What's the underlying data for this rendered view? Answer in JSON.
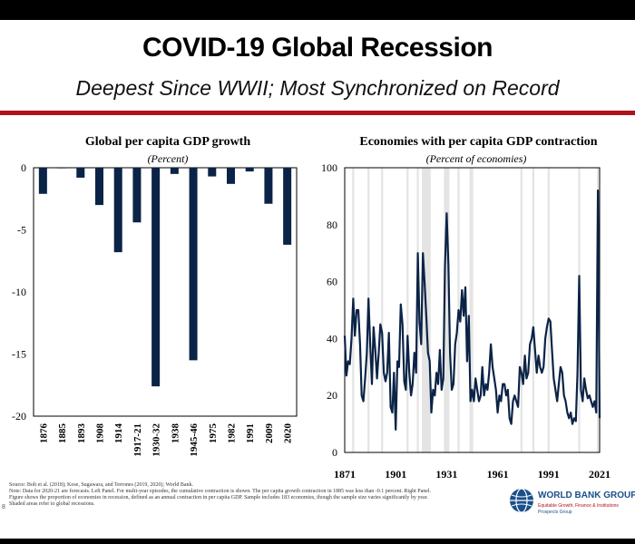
{
  "slide": {
    "title": "COVID-19 Global Recession",
    "subtitle": "Deepest Since WWII; Most Synchronized on Record",
    "source_lines": [
      "Source: Bolt et al. (2018); Kose, Sugawara, and Terrones (2019, 2020); World Bank.",
      "Note: Data for 2020-21 are forecasts. Left Panel. For multi-year episodes, the cumulative contraction is shown. The per capita growth contraction in 1885 was less than -0.1 percent. Right Panel.",
      "Figure shows the proportion of economies in recession, defined as an annual contraction in per capita GDP. Sample includes 183 economies, though the sample size varies significantly by year.",
      "Shaded areas refer to global recessions."
    ],
    "page_number": "8",
    "logo": {
      "name": "WORLD BANK GROUP",
      "tagline": "Equitable Growth, Finance & Institutions",
      "tagline2": "Prospects Group"
    }
  },
  "chart_data": [
    {
      "type": "bar",
      "title": "Global per capita GDP growth",
      "subtitle": "(Percent)",
      "categories": [
        "1876",
        "1885",
        "1893",
        "1908",
        "1914",
        "1917-21",
        "1930-32",
        "1938",
        "1945-46",
        "1975",
        "1982",
        "1991",
        "2009",
        "2020"
      ],
      "values": [
        -2.1,
        -0.05,
        -0.8,
        -3.0,
        -6.8,
        -4.4,
        -17.6,
        -0.5,
        -15.5,
        -0.7,
        -1.3,
        -0.3,
        -2.9,
        -6.2
      ],
      "ylim": [
        -20,
        0
      ],
      "yticks": [
        "0",
        "-5",
        "-10",
        "-15",
        "-20"
      ],
      "bar_color": "#0b2346",
      "grid": false
    },
    {
      "type": "line",
      "title": "Economies with per capita GDP contraction",
      "subtitle": "(Percent of economies)",
      "x_start": 1871,
      "x_end": 2021,
      "xticks": [
        "1871",
        "1901",
        "1931",
        "1961",
        "1991",
        "2021"
      ],
      "yticks": [
        "0",
        "20",
        "40",
        "60",
        "80",
        "100"
      ],
      "ylim": [
        0,
        100
      ],
      "line_color": "#0b2346",
      "shade_color": "#e4e4e4",
      "shaded_years": [
        1876,
        1885,
        1893,
        1908,
        1914,
        1917,
        1918,
        1919,
        1920,
        1921,
        1930,
        1931,
        1932,
        1938,
        1945,
        1946,
        1975,
        1982,
        1991,
        2009,
        2020
      ],
      "points": [
        [
          1871,
          41
        ],
        [
          1872,
          27
        ],
        [
          1873,
          32
        ],
        [
          1874,
          31
        ],
        [
          1875,
          40
        ],
        [
          1876,
          54
        ],
        [
          1877,
          41
        ],
        [
          1878,
          50
        ],
        [
          1879,
          50
        ],
        [
          1880,
          38
        ],
        [
          1881,
          20
        ],
        [
          1882,
          18
        ],
        [
          1883,
          26
        ],
        [
          1884,
          35
        ],
        [
          1885,
          54
        ],
        [
          1886,
          38
        ],
        [
          1887,
          24
        ],
        [
          1888,
          44
        ],
        [
          1889,
          36
        ],
        [
          1890,
          26
        ],
        [
          1891,
          35
        ],
        [
          1892,
          45
        ],
        [
          1893,
          42
        ],
        [
          1894,
          28
        ],
        [
          1895,
          25
        ],
        [
          1896,
          28
        ],
        [
          1897,
          42
        ],
        [
          1898,
          16
        ],
        [
          1899,
          14
        ],
        [
          1900,
          28
        ],
        [
          1901,
          8
        ],
        [
          1902,
          32
        ],
        [
          1903,
          30
        ],
        [
          1904,
          52
        ],
        [
          1905,
          45
        ],
        [
          1906,
          25
        ],
        [
          1907,
          22
        ],
        [
          1908,
          41
        ],
        [
          1909,
          28
        ],
        [
          1910,
          20
        ],
        [
          1911,
          24
        ],
        [
          1912,
          35
        ],
        [
          1913,
          28
        ],
        [
          1914,
          70
        ],
        [
          1915,
          46
        ],
        [
          1916,
          38
        ],
        [
          1917,
          70
        ],
        [
          1918,
          60
        ],
        [
          1919,
          48
        ],
        [
          1920,
          35
        ],
        [
          1921,
          32
        ],
        [
          1922,
          14
        ],
        [
          1923,
          22
        ],
        [
          1924,
          20
        ],
        [
          1925,
          28
        ],
        [
          1926,
          24
        ],
        [
          1927,
          36
        ],
        [
          1928,
          22
        ],
        [
          1929,
          26
        ],
        [
          1930,
          65
        ],
        [
          1931,
          84
        ],
        [
          1932,
          66
        ],
        [
          1933,
          35
        ],
        [
          1934,
          22
        ],
        [
          1935,
          24
        ],
        [
          1936,
          38
        ],
        [
          1937,
          42
        ],
        [
          1938,
          50
        ],
        [
          1939,
          46
        ],
        [
          1940,
          57
        ],
        [
          1941,
          48
        ],
        [
          1942,
          58
        ],
        [
          1943,
          32
        ],
        [
          1944,
          48
        ],
        [
          1945,
          18
        ],
        [
          1946,
          22
        ],
        [
          1947,
          18
        ],
        [
          1948,
          26
        ],
        [
          1949,
          22
        ],
        [
          1950,
          18
        ],
        [
          1951,
          20
        ],
        [
          1952,
          30
        ],
        [
          1953,
          20
        ],
        [
          1954,
          24
        ],
        [
          1955,
          22
        ],
        [
          1956,
          28
        ],
        [
          1957,
          38
        ],
        [
          1958,
          30
        ],
        [
          1959,
          26
        ],
        [
          1960,
          22
        ],
        [
          1961,
          14
        ],
        [
          1962,
          20
        ],
        [
          1963,
          18
        ],
        [
          1964,
          24
        ],
        [
          1965,
          24
        ],
        [
          1966,
          20
        ],
        [
          1967,
          22
        ],
        [
          1968,
          12
        ],
        [
          1969,
          10
        ],
        [
          1970,
          18
        ],
        [
          1971,
          20
        ],
        [
          1972,
          18
        ],
        [
          1973,
          16
        ],
        [
          1974,
          30
        ],
        [
          1975,
          28
        ],
        [
          1976,
          24
        ],
        [
          1977,
          34
        ],
        [
          1978,
          26
        ],
        [
          1979,
          28
        ],
        [
          1980,
          38
        ],
        [
          1981,
          40
        ],
        [
          1982,
          44
        ],
        [
          1983,
          36
        ],
        [
          1984,
          28
        ],
        [
          1985,
          34
        ],
        [
          1986,
          30
        ],
        [
          1987,
          28
        ],
        [
          1988,
          30
        ],
        [
          1989,
          40
        ],
        [
          1990,
          44
        ],
        [
          1991,
          47
        ],
        [
          1992,
          46
        ],
        [
          1993,
          36
        ],
        [
          1994,
          26
        ],
        [
          1995,
          22
        ],
        [
          1996,
          18
        ],
        [
          1997,
          24
        ],
        [
          1998,
          30
        ],
        [
          1999,
          28
        ],
        [
          2000,
          20
        ],
        [
          2001,
          18
        ],
        [
          2002,
          14
        ],
        [
          2003,
          12
        ],
        [
          2004,
          14
        ],
        [
          2005,
          10
        ],
        [
          2006,
          12
        ],
        [
          2007,
          11
        ],
        [
          2008,
          28
        ],
        [
          2009,
          62
        ],
        [
          2010,
          22
        ],
        [
          2011,
          18
        ],
        [
          2012,
          26
        ],
        [
          2013,
          22
        ],
        [
          2014,
          19
        ],
        [
          2015,
          20
        ],
        [
          2016,
          18
        ],
        [
          2017,
          16
        ],
        [
          2018,
          18
        ],
        [
          2019,
          14
        ],
        [
          2020,
          92
        ],
        [
          2021,
          12
        ]
      ]
    }
  ]
}
